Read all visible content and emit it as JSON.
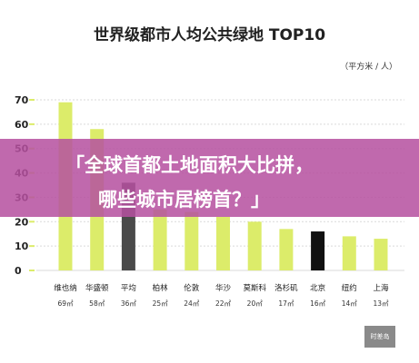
{
  "title": "世界级都市人均公共绿地 TOP10",
  "unit": "（平方米 / 人）",
  "banner": {
    "line1": "「全球首都土地面积大比拼，",
    "line2": "哪些城市居榜首？」"
  },
  "logo_text": "时差岛",
  "chart_data": {
    "type": "bar",
    "title": "世界级都市人均公共绿地 TOP10",
    "xlabel": "",
    "ylabel": "",
    "ylim": [
      0,
      70
    ],
    "yticks": [
      0,
      10,
      20,
      30,
      40,
      50,
      60,
      70
    ],
    "grid": true,
    "categories": [
      "维也纳",
      "华盛顿",
      "平均",
      "柏林",
      "伦敦",
      "华沙",
      "莫斯科",
      "洛杉矶",
      "北京",
      "纽约",
      "上海"
    ],
    "values": [
      69,
      58,
      36,
      25,
      24,
      22,
      20,
      17,
      16,
      14,
      13
    ],
    "value_labels": [
      "69㎡",
      "58㎡",
      "36㎡",
      "25㎡",
      "24㎡",
      "22㎡",
      "20㎡",
      "17㎡",
      "16㎡",
      "14㎡",
      "13㎡"
    ],
    "colors": [
      "#dcec6a",
      "#dcec6a",
      "#4a4a4a",
      "#dcec6a",
      "#dcec6a",
      "#dcec6a",
      "#dcec6a",
      "#dcec6a",
      "#111111",
      "#dcec6a",
      "#dcec6a"
    ],
    "grid_color": "#d9d9d9",
    "tick_color": "#dcec6a"
  }
}
